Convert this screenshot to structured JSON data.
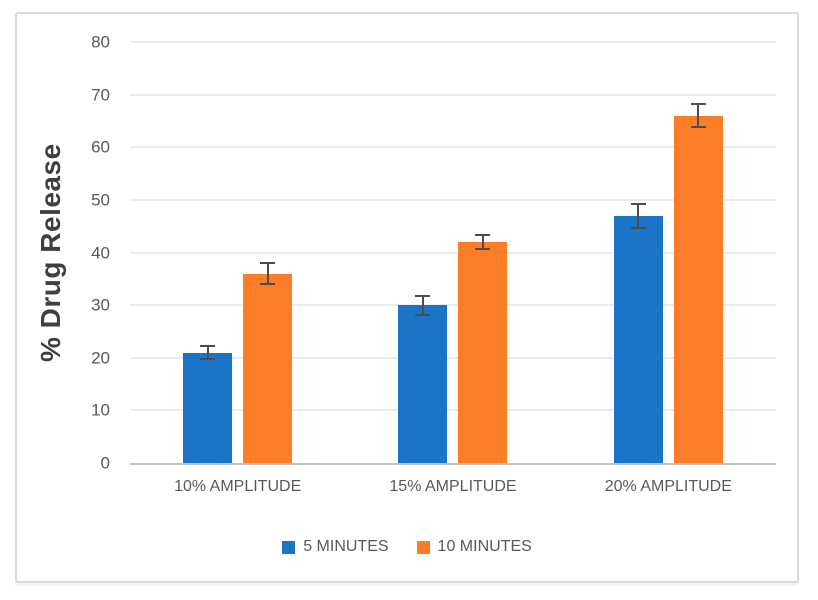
{
  "chart_data": {
    "type": "bar",
    "title": "",
    "ylabel": "% Drug Release",
    "xlabel": "",
    "categories": [
      "10% AMPLITUDE",
      "15% AMPLITUDE",
      "20% AMPLITUDE"
    ],
    "series": [
      {
        "name": "5 MINUTES",
        "color": "#1b74c8",
        "values": [
          21,
          30,
          47
        ],
        "errors": [
          1.5,
          2.0,
          2.5
        ]
      },
      {
        "name": "10 MINUTES",
        "color": "#fc7d27",
        "values": [
          36,
          42,
          66
        ],
        "errors": [
          2.2,
          1.6,
          2.4
        ]
      }
    ],
    "ylim": [
      0,
      80
    ],
    "ytick_step": 10,
    "yticks": [
      0,
      10,
      20,
      30,
      40,
      50,
      60,
      70,
      80
    ],
    "grid": true,
    "legend_position": "bottom",
    "colors": {
      "gridline": "#d9d9d9",
      "axis_line": "#bfbfbf",
      "tick_label": "#595959",
      "category_label": "#595959",
      "legend_label": "#595959",
      "axis_title": "#3f3f3f",
      "error_bar": "#4d4d4d",
      "frame_border": "#d9d9d9",
      "background": "#ffffff"
    }
  }
}
